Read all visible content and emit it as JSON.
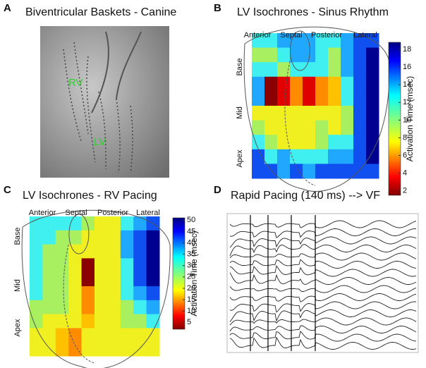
{
  "panels": [
    {
      "letter": "A",
      "title": "Biventricular Baskets - Canine",
      "labels": [
        "RV",
        "LV"
      ]
    },
    {
      "letter": "B",
      "title": "LV Isochrones - Sinus Rhythm",
      "columns": [
        "Anterior",
        "Septal",
        "Posterior",
        "Lateral"
      ],
      "rows": [
        "Base",
        "Mid",
        "Apex"
      ],
      "colorbar": {
        "label": "Activation Time (msec)",
        "lim": [
          1.5,
          18.8
        ],
        "ticks": [
          2,
          4,
          6,
          8,
          10,
          12,
          14,
          16,
          18
        ]
      }
    },
    {
      "letter": "C",
      "title": "LV Isochrones - RV Pacing",
      "columns": [
        "Anterior",
        "Septal",
        "Posterior",
        "Lateral"
      ],
      "rows": [
        "Base",
        "Mid",
        "Apex"
      ],
      "colorbar": {
        "label": "Activation Time (msec)",
        "lim": [
          2,
          51
        ],
        "ticks": [
          5,
          10,
          15,
          20,
          25,
          30,
          35,
          40,
          45,
          50
        ]
      }
    },
    {
      "letter": "D",
      "title": "Rapid Pacing (140 ms) --> VF"
    }
  ]
}
